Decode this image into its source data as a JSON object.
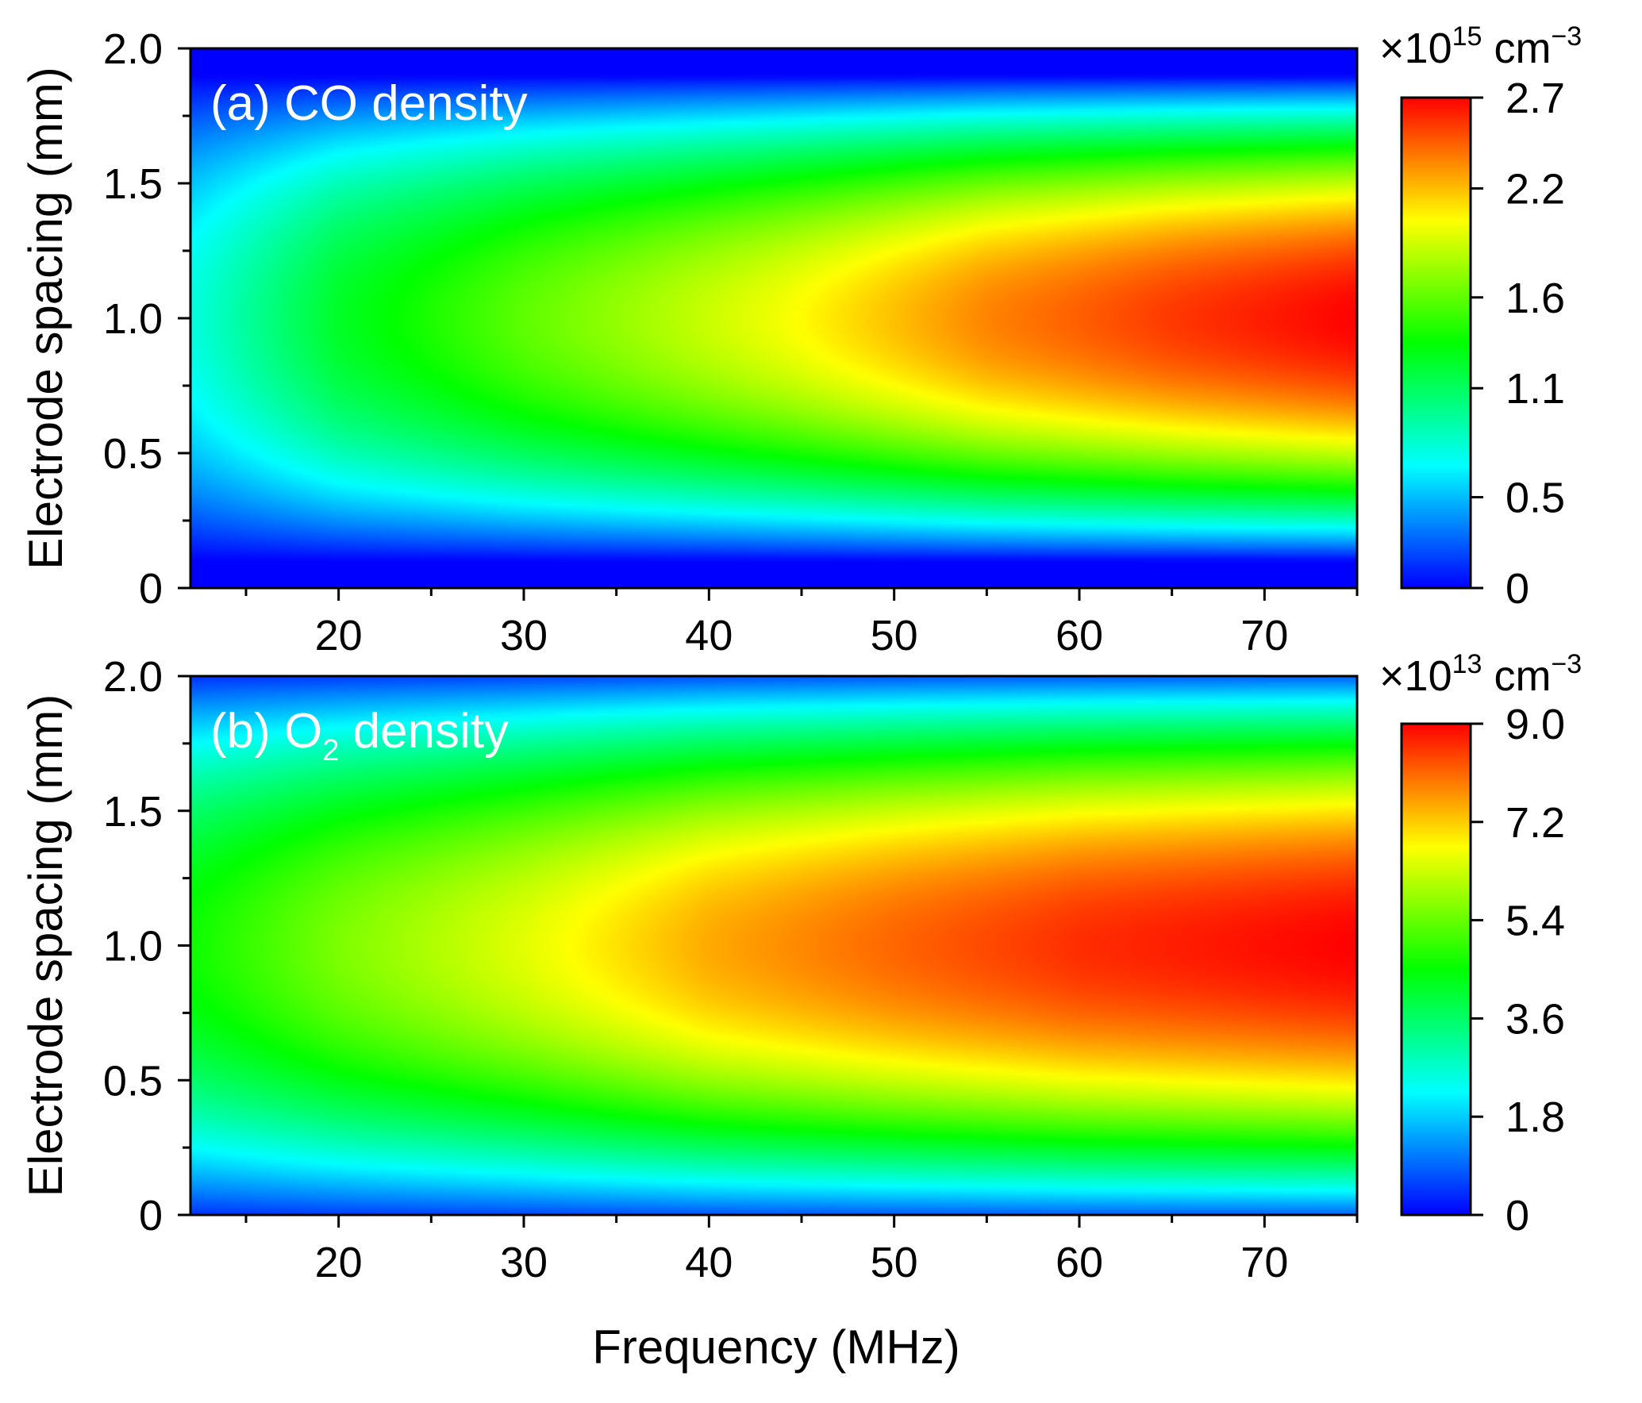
{
  "chart_data": [
    {
      "type": "heatmap",
      "panel": "a",
      "title": "(a) CO density",
      "label_prefix": "(a) CO density",
      "label_sub": "",
      "label_suffix": "",
      "xlabel": "Frequency (MHz)",
      "ylabel": "Electrode spacing (mm)",
      "xlim": [
        12,
        75
      ],
      "ylim": [
        0,
        2.0
      ],
      "x_ticks": [
        20,
        30,
        40,
        50,
        60,
        70
      ],
      "x_tick_labels": [
        "20",
        "30",
        "40",
        "50",
        "60",
        "70"
      ],
      "y_ticks": [
        0,
        0.5,
        1.0,
        1.5,
        2.0
      ],
      "y_tick_labels": [
        "0",
        "0.5",
        "1.0",
        "1.5",
        "2.0"
      ],
      "colorbar": {
        "unit_prefix": "×10",
        "unit_exp": "15",
        "unit_suffix": " cm",
        "unit_suffix_exp": "−3",
        "range": [
          0,
          2.7
        ],
        "ticks": [
          0,
          0.5,
          1.1,
          1.6,
          2.2,
          2.7
        ],
        "tick_labels": [
          "0",
          "0.5",
          "1.1",
          "1.6",
          "2.2",
          "2.7"
        ]
      },
      "peak_spacing_mm": 1.0,
      "peak_value": 2.7,
      "center_profile": {
        "frequency_MHz": [
          12,
          20,
          30,
          44,
          55,
          65,
          75
        ],
        "density": [
          0.75,
          1.25,
          1.6,
          2.0,
          2.35,
          2.55,
          2.7
        ]
      },
      "profile_width_mm": 0.9
    },
    {
      "type": "heatmap",
      "panel": "b",
      "title": "(b) O2 density",
      "label_prefix": "(b) O",
      "label_sub": "2",
      "label_suffix": " density",
      "xlabel": "Frequency (MHz)",
      "ylabel": "Electrode spacing (mm)",
      "xlim": [
        12,
        75
      ],
      "ylim": [
        0,
        2.0
      ],
      "x_ticks": [
        20,
        30,
        40,
        50,
        60,
        70
      ],
      "x_tick_labels": [
        "20",
        "30",
        "40",
        "50",
        "60",
        "70"
      ],
      "y_ticks": [
        0,
        0.5,
        1.0,
        1.5,
        2.0
      ],
      "y_tick_labels": [
        "0",
        "0.5",
        "1.0",
        "1.5",
        "2.0"
      ],
      "colorbar": {
        "unit_prefix": "×10",
        "unit_exp": "13",
        "unit_suffix": " cm",
        "unit_suffix_exp": "−3",
        "range": [
          0,
          9.0
        ],
        "ticks": [
          0,
          1.8,
          3.6,
          5.4,
          7.2,
          9.0
        ],
        "tick_labels": [
          "0",
          "1.8",
          "3.6",
          "5.4",
          "7.2",
          "9.0"
        ]
      },
      "peak_spacing_mm": 1.0,
      "peak_value": 9.0,
      "center_profile": {
        "frequency_MHz": [
          12,
          20,
          30,
          40,
          50,
          60,
          75
        ],
        "density": [
          4.6,
          5.6,
          6.5,
          7.5,
          8.1,
          8.6,
          9.0
        ]
      },
      "profile_width_mm": 1.05
    }
  ],
  "colormap": [
    "#0000ff",
    "#00ffff",
    "#00ff00",
    "#ffff00",
    "#ff0000"
  ],
  "shared_xlabel": "Frequency (MHz)"
}
